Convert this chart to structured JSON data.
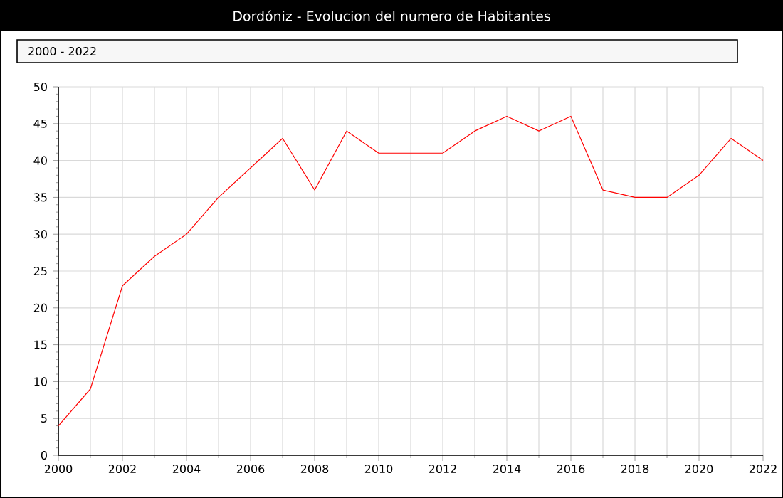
{
  "chart_data": {
    "type": "line",
    "title": "Dordóniz - Evolucion del numero de Habitantes",
    "subtitle": "2000 - 2022",
    "x": [
      2000,
      2001,
      2002,
      2003,
      2004,
      2005,
      2006,
      2007,
      2008,
      2009,
      2010,
      2011,
      2012,
      2013,
      2014,
      2015,
      2016,
      2017,
      2018,
      2019,
      2020,
      2021,
      2022
    ],
    "series": [
      {
        "color": "#ff0000",
        "values": [
          4,
          9,
          23,
          27,
          30,
          35,
          39,
          43,
          36,
          44,
          41,
          41,
          41,
          44,
          46,
          44,
          46,
          36,
          35,
          35,
          38,
          43,
          40
        ]
      }
    ],
    "xlim": [
      2000,
      2022
    ],
    "ylim": [
      0,
      50
    ],
    "xticks": [
      2000,
      2002,
      2004,
      2006,
      2008,
      2010,
      2012,
      2014,
      2016,
      2018,
      2020,
      2022
    ],
    "yticks": [
      0,
      5,
      10,
      15,
      20,
      25,
      30,
      35,
      40,
      45,
      50
    ],
    "grid": true,
    "marker": "none",
    "line_style": "solid"
  }
}
